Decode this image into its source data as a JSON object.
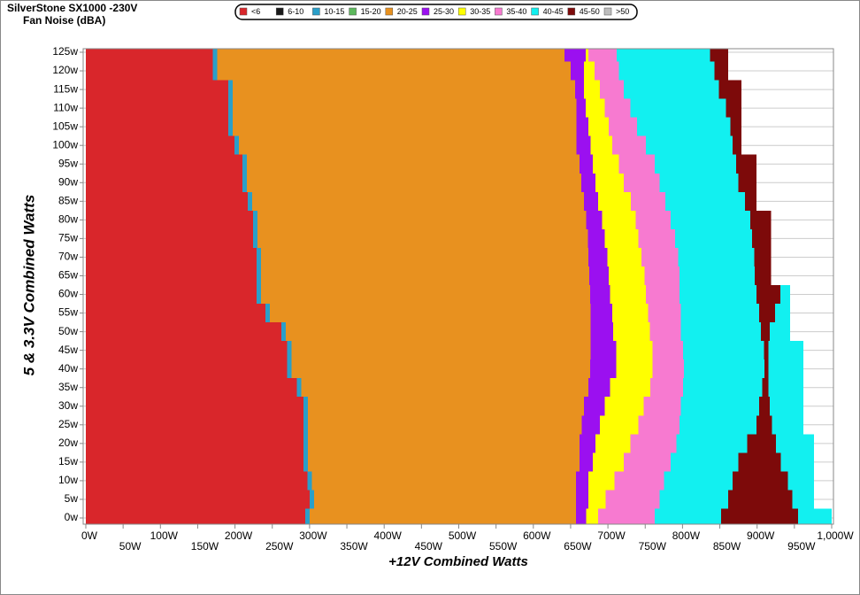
{
  "chart_data": {
    "type": "heatmap",
    "title": "SilverStone  SX1000 -230V",
    "subtitle": "Fan Noise (dBA)",
    "x_label": "+12V Combined Watts",
    "y_label": "5 & 3.3V Combined Watts",
    "xlim": [
      0,
      1000
    ],
    "ylim": [
      0,
      125
    ],
    "grid": true,
    "y": [
      0,
      5,
      10,
      15,
      20,
      25,
      30,
      35,
      40,
      45,
      50,
      55,
      60,
      65,
      70,
      75,
      80,
      85,
      90,
      95,
      100,
      105,
      110,
      115,
      120,
      125
    ],
    "xticks": [
      {
        "value": 0,
        "label": "0W"
      },
      {
        "value": 50,
        "label": "50W"
      },
      {
        "value": 100,
        "label": "100W"
      },
      {
        "value": 150,
        "label": "150W"
      },
      {
        "value": 200,
        "label": "200W"
      },
      {
        "value": 250,
        "label": "250W"
      },
      {
        "value": 300,
        "label": "300W"
      },
      {
        "value": 350,
        "label": "350W"
      },
      {
        "value": 400,
        "label": "400W"
      },
      {
        "value": 450,
        "label": "450W"
      },
      {
        "value": 500,
        "label": "500W"
      },
      {
        "value": 550,
        "label": "550W"
      },
      {
        "value": 600,
        "label": "600W"
      },
      {
        "value": 650,
        "label": "650W"
      },
      {
        "value": 700,
        "label": "700W"
      },
      {
        "value": 750,
        "label": "750W"
      },
      {
        "value": 800,
        "label": "800W"
      },
      {
        "value": 850,
        "label": "850W"
      },
      {
        "value": 900,
        "label": "900W"
      },
      {
        "value": 950,
        "label": "950W"
      },
      {
        "value": 1000,
        "label": "1,000W"
      }
    ],
    "yticks": [
      {
        "value": 0,
        "label": "0w"
      },
      {
        "value": 5,
        "label": "5w"
      },
      {
        "value": 10,
        "label": "10w"
      },
      {
        "value": 15,
        "label": "15w"
      },
      {
        "value": 20,
        "label": "20w"
      },
      {
        "value": 25,
        "label": "25w"
      },
      {
        "value": 30,
        "label": "30w"
      },
      {
        "value": 35,
        "label": "35w"
      },
      {
        "value": 40,
        "label": "40w"
      },
      {
        "value": 45,
        "label": "45w"
      },
      {
        "value": 50,
        "label": "50w"
      },
      {
        "value": 55,
        "label": "55w"
      },
      {
        "value": 60,
        "label": "60w"
      },
      {
        "value": 65,
        "label": "65w"
      },
      {
        "value": 70,
        "label": "70w"
      },
      {
        "value": 75,
        "label": "75w"
      },
      {
        "value": 80,
        "label": "80w"
      },
      {
        "value": 85,
        "label": "85w"
      },
      {
        "value": 90,
        "label": "90w"
      },
      {
        "value": 95,
        "label": "95w"
      },
      {
        "value": 100,
        "label": "100w"
      },
      {
        "value": 105,
        "label": "105w"
      },
      {
        "value": 110,
        "label": "110w"
      },
      {
        "value": 115,
        "label": "115w"
      },
      {
        "value": 120,
        "label": "120w"
      },
      {
        "value": 125,
        "label": "125w"
      }
    ],
    "series": [
      {
        "name": "<6",
        "color": "#d9262b",
        "values": [
          294,
          300,
          297,
          292,
          292,
          292,
          292,
          283,
          270,
          270,
          262,
          241,
          229,
          229,
          229,
          224,
          224,
          217,
          210,
          210,
          199,
          191,
          191,
          191,
          170,
          170
        ]
      },
      {
        "name": "6-10",
        "color": "#1a1a1a",
        "values": [
          null,
          null,
          null,
          null,
          null,
          null,
          null,
          null,
          null,
          null,
          null,
          null,
          null,
          null,
          null,
          null,
          null,
          null,
          null,
          null,
          null,
          null,
          null,
          null,
          null,
          null
        ]
      },
      {
        "name": "10-15",
        "color": "#2a9fc9",
        "values": [
          300,
          306,
          303,
          298,
          298,
          298,
          298,
          289,
          276,
          276,
          268,
          247,
          235,
          235,
          235,
          230,
          230,
          223,
          216,
          216,
          205,
          197,
          197,
          197,
          176,
          176
        ]
      },
      {
        "name": "15-20",
        "color": "#5cb85c",
        "values": [
          null,
          null,
          null,
          null,
          null,
          null,
          null,
          null,
          null,
          null,
          null,
          null,
          null,
          null,
          null,
          null,
          null,
          null,
          null,
          null,
          null,
          null,
          null,
          null,
          null,
          null
        ]
      },
      {
        "name": "20-25",
        "color": "#e8911f",
        "values": [
          657,
          657,
          657,
          662,
          662,
          665,
          668,
          674,
          676,
          677,
          677,
          677,
          676,
          675,
          674,
          673,
          671,
          668,
          664,
          662,
          658,
          658,
          658,
          656,
          650,
          642
        ]
      },
      {
        "name": "25-30",
        "color": "#9b10f0",
        "values": [
          671,
          674,
          674,
          680,
          683,
          689,
          696,
          703,
          711,
          711,
          707,
          706,
          703,
          701,
          699,
          696,
          692,
          687,
          683,
          680,
          677,
          674,
          670,
          668,
          668,
          670
        ]
      },
      {
        "name": "30-35",
        "color": "#ffff00",
        "values": [
          687,
          697,
          709,
          721,
          730,
          741,
          748,
          757,
          760,
          760,
          756,
          754,
          751,
          749,
          745,
          741,
          737,
          731,
          721,
          715,
          706,
          701,
          696,
          689,
          682,
          674
        ]
      },
      {
        "name": "35-40",
        "color": "#f77ad0",
        "values": [
          763,
          769,
          775,
          784,
          792,
          796,
          798,
          801,
          802,
          801,
          798,
          798,
          796,
          796,
          794,
          790,
          784,
          777,
          769,
          763,
          751,
          739,
          730,
          721,
          715,
          712
        ]
      },
      {
        "name": "40-45",
        "color": "#12f0f0",
        "values": [
          852,
          861,
          867,
          875,
          887,
          899,
          903,
          907,
          910,
          909,
          905,
          903,
          899,
          897,
          896,
          893,
          891,
          884,
          875,
          872,
          867,
          864,
          858,
          849,
          843,
          837
        ],
        "outer_values": [
          1000,
          976,
          976,
          976,
          976,
          962,
          962,
          962,
          962,
          962,
          944,
          944,
          944,
          null,
          null,
          null,
          null,
          null,
          null,
          null,
          null,
          null,
          null,
          null,
          null,
          null
        ]
      },
      {
        "name": "45-50",
        "color": "#7d0a0a",
        "values": [
          955,
          947,
          941,
          932,
          925,
          920,
          917,
          915,
          915,
          915,
          917,
          924,
          931,
          919,
          919,
          919,
          919,
          899,
          899,
          899,
          879,
          879,
          879,
          879,
          861,
          861
        ]
      },
      {
        "name": ">50",
        "color": "#bdbdbd",
        "values": [
          null,
          null,
          null,
          null,
          null,
          null,
          null,
          null,
          null,
          null,
          null,
          null,
          null,
          null,
          null,
          null,
          null,
          null,
          null,
          null,
          null,
          null,
          null,
          null,
          null,
          null
        ]
      }
    ]
  }
}
